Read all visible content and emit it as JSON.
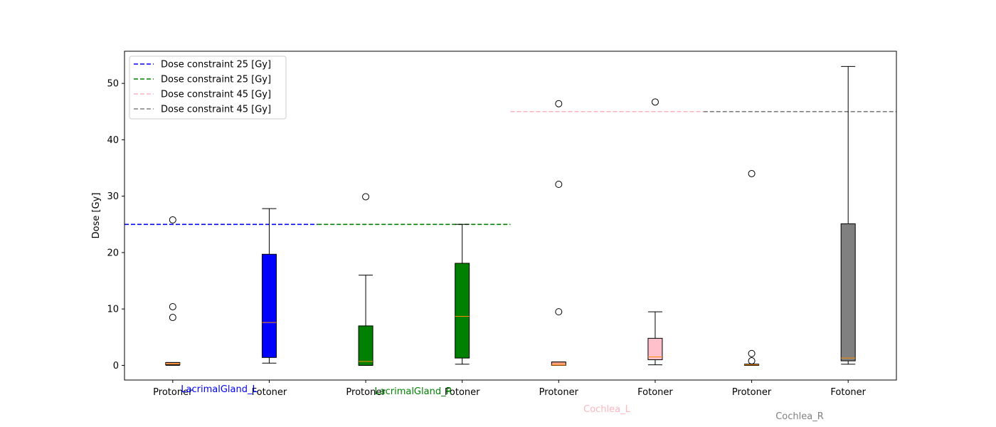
{
  "chart_data": {
    "type": "box",
    "xlabel": "",
    "ylabel": "Dose [Gy]",
    "ylim": [
      -2.6,
      55.7
    ],
    "yticks": [
      0,
      10,
      20,
      30,
      40,
      50
    ],
    "grid": false,
    "legend_position": "top-left",
    "categories": [
      "Protoner",
      "Fotoner",
      "Protoner",
      "Fotoner",
      "Protoner",
      "Fotoner",
      "Protoner",
      "Fotoner"
    ],
    "boxes": [
      {
        "group": "LacrimalGland_L",
        "label": "Protoner",
        "color": "#FFA07A",
        "whisker_low": 0.0,
        "q1": 0.1,
        "median": 0.3,
        "q3": 0.5,
        "whisker_high": 0.5,
        "outliers": [
          8.5,
          10.4,
          25.8
        ]
      },
      {
        "group": "LacrimalGland_L",
        "label": "Fotoner",
        "color": "#0000FF",
        "whisker_low": 0.4,
        "q1": 1.4,
        "median": 7.6,
        "q3": 19.7,
        "whisker_high": 27.8,
        "outliers": []
      },
      {
        "group": "LacrimalGland_R",
        "label": "Protoner",
        "color": "#008000",
        "whisker_low": 0.0,
        "q1": 0.0,
        "median": 0.7,
        "q3": 7.0,
        "whisker_high": 16.0,
        "outliers": [
          29.9
        ]
      },
      {
        "group": "LacrimalGland_R",
        "label": "Fotoner",
        "color": "#008000",
        "whisker_low": 0.2,
        "q1": 1.3,
        "median": 8.7,
        "q3": 18.1,
        "whisker_high": 25.0,
        "outliers": []
      },
      {
        "group": "Cochlea_L",
        "label": "Protoner",
        "color": "#FFA07A",
        "whisker_low": 0.0,
        "q1": 0.0,
        "median": 0.05,
        "q3": 0.6,
        "whisker_high": 0.6,
        "outliers": [
          9.5,
          32.1,
          46.4
        ]
      },
      {
        "group": "Cochlea_L",
        "label": "Fotoner",
        "color": "#FFC0CB",
        "whisker_low": 0.1,
        "q1": 1.0,
        "median": 1.5,
        "q3": 4.8,
        "whisker_high": 9.5,
        "outliers": [
          46.7
        ]
      },
      {
        "group": "Cochlea_R",
        "label": "Protoner",
        "color": "#FFA07A",
        "whisker_low": 0.0,
        "q1": 0.0,
        "median": 0.1,
        "q3": 0.2,
        "whisker_high": 0.2,
        "outliers": [
          0.8,
          2.1,
          34.0
        ]
      },
      {
        "group": "Cochlea_R",
        "label": "Fotoner",
        "color": "#808080",
        "whisker_low": 0.2,
        "q1": 0.8,
        "median": 1.3,
        "q3": 25.1,
        "whisker_high": 53.0,
        "outliers": []
      }
    ],
    "constraints": [
      {
        "label": "Dose constraint  25 [Gy]",
        "value": 25,
        "color": "#0000FF",
        "from_box": 0,
        "to_box": 2
      },
      {
        "label": "Dose constraint  25 [Gy]",
        "value": 25,
        "color": "#008000",
        "from_box": 2,
        "to_box": 4
      },
      {
        "label": "Dose constraint  45 [Gy]",
        "value": 45,
        "color": "#FFB6C1",
        "from_box": 4,
        "to_box": 6
      },
      {
        "label": "Dose constraint  45 [Gy]",
        "value": 45,
        "color": "#808080",
        "from_box": 6,
        "to_box": 8
      }
    ],
    "group_labels": [
      {
        "text": "LacrimalGland_L",
        "color": "#0000FF"
      },
      {
        "text": "LacrimalGland_R",
        "color": "#008000"
      },
      {
        "text": "Cochlea_L",
        "color": "#FFB6C1"
      },
      {
        "text": "Cochlea_R",
        "color": "#808080"
      }
    ],
    "median_color": "#FF8C00"
  }
}
